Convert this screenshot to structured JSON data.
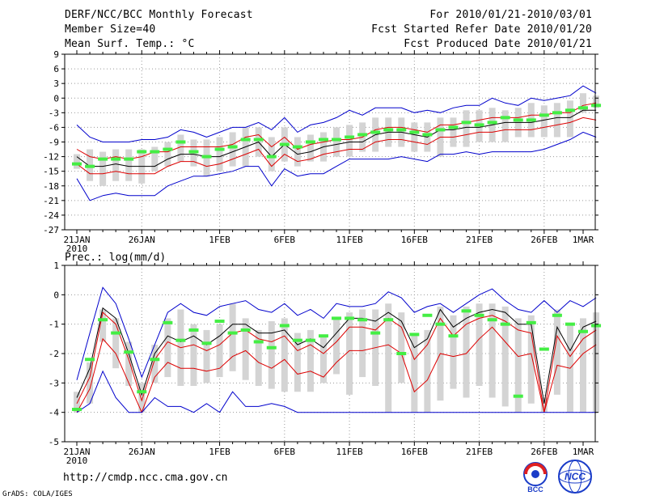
{
  "header": {
    "title": "DERF/NCC/BCC Monthly Forecast",
    "member_size": "Member Size=40",
    "variable1": "Mean Surf. Temp.: °C",
    "period": "For 2010/01/21-2010/03/01",
    "fcst_start": "Fcst Started Refer Date 2010/01/20",
    "fcst_produced": "Fcst Produced Date 2010/01/21"
  },
  "footer": {
    "url": "http://cmdp.ncc.cma.gov.cn",
    "credit": "GrADS: COLA/IGES"
  },
  "logos": {
    "bcc": "BCC",
    "ncc": "NCC"
  },
  "colors": {
    "envelope": "#0000cc",
    "spread": "#dd0000",
    "mean": "#000000",
    "box": "#d4d4d4",
    "observed": "#44ee44",
    "grid": "#999999"
  },
  "chart_data": [
    {
      "type": "line",
      "title": "Mean Surf. Temp.: °C",
      "xlabel": "",
      "ylabel": "",
      "ylim": [
        -27,
        9
      ],
      "yticks": [
        9,
        6,
        3,
        0,
        -3,
        -6,
        -9,
        -12,
        -15,
        -18,
        -21,
        -24,
        -27
      ],
      "xlim": [
        0,
        39
      ],
      "x_tick_labels": [
        {
          "i": 0,
          "label": "21JAN",
          "sub": "2010"
        },
        {
          "i": 5,
          "label": "26JAN"
        },
        {
          "i": 11,
          "label": "1FEB"
        },
        {
          "i": 16,
          "label": "6FEB"
        },
        {
          "i": 21,
          "label": "11FEB"
        },
        {
          "i": 26,
          "label": "16FEB"
        },
        {
          "i": 31,
          "label": "21FEB"
        },
        {
          "i": 36,
          "label": "26FEB"
        },
        {
          "i": 39,
          "label": "1MAR"
        }
      ],
      "series": [
        {
          "name": "max",
          "values": [
            -5.5,
            -8,
            -9,
            -9,
            -9,
            -8.5,
            -8.5,
            -8,
            -6.5,
            -7,
            -8,
            -7,
            -6,
            -6,
            -5,
            -6.5,
            -4,
            -7,
            -5.5,
            -5,
            -4,
            -2.5,
            -3.5,
            -2,
            -2,
            -2,
            -3,
            -2.5,
            -3,
            -2,
            -1.5,
            -1.5,
            0,
            -1,
            -1.5,
            0,
            -0.5,
            0,
            0.5,
            2.5,
            1
          ]
        },
        {
          "name": "upper",
          "values": [
            -10.5,
            -12,
            -12.5,
            -12,
            -12.5,
            -12,
            -11,
            -11,
            -10,
            -10,
            -10,
            -10,
            -9.5,
            -8,
            -7.5,
            -10,
            -8,
            -10.5,
            -9.5,
            -9,
            -8.5,
            -8.5,
            -8,
            -6.5,
            -6,
            -6,
            -6.5,
            -7,
            -5.5,
            -5.5,
            -5,
            -4.5,
            -4,
            -4,
            -4,
            -3.5,
            -3.5,
            -3,
            -3,
            -1.5,
            -1
          ]
        },
        {
          "name": "mean",
          "values": [
            -12,
            -14,
            -14,
            -13.5,
            -14,
            -14,
            -14,
            -12.5,
            -11.5,
            -11.5,
            -12,
            -12,
            -11,
            -10,
            -9,
            -12,
            -9.5,
            -11.5,
            -11,
            -10,
            -9.5,
            -9,
            -9,
            -7.5,
            -7,
            -7,
            -7.5,
            -8,
            -6.5,
            -6.5,
            -6,
            -6,
            -5.5,
            -5,
            -5,
            -5,
            -4.5,
            -4,
            -4,
            -2.5,
            -2.5
          ]
        },
        {
          "name": "lower",
          "values": [
            -13.5,
            -15.5,
            -15.5,
            -15,
            -15.5,
            -15.5,
            -15.5,
            -14,
            -13,
            -13,
            -14,
            -13.5,
            -12.5,
            -11.5,
            -10.5,
            -14,
            -11.5,
            -13,
            -12.5,
            -11.5,
            -11,
            -10.5,
            -10.5,
            -9,
            -8.5,
            -8.5,
            -9,
            -9.5,
            -8,
            -8,
            -7.5,
            -7,
            -7,
            -6.5,
            -6.5,
            -6.5,
            -6,
            -5.5,
            -5,
            -4,
            -4.5
          ]
        },
        {
          "name": "min",
          "values": [
            -16.5,
            -21,
            -20,
            -19.5,
            -20,
            -20,
            -20,
            -18,
            -17,
            -16,
            -16,
            -15.5,
            -15,
            -14,
            -14,
            -18,
            -14.5,
            -16,
            -15.5,
            -15.5,
            -14,
            -12.5,
            -12.5,
            -12.5,
            -12.5,
            -12,
            -12.5,
            -13,
            -11.5,
            -11.5,
            -11,
            -11.5,
            -11,
            -11,
            -11,
            -11,
            -10.5,
            -9.5,
            -8.5,
            -7,
            -8
          ]
        }
      ],
      "box": {
        "low": [
          -14.5,
          -17,
          -18,
          -17,
          -17,
          -17.5,
          -15,
          -14,
          -13,
          -14,
          -16,
          -15,
          -14,
          -14,
          -12,
          -15,
          -13,
          -14,
          -13,
          -13,
          -12,
          -12,
          -11,
          -11,
          -10,
          -10,
          -11,
          -11,
          -12,
          -10,
          -10,
          -9,
          -9,
          -9,
          -8,
          -8,
          -8,
          -8,
          -8,
          -3,
          -2
        ],
        "high": [
          -11.5,
          -10.5,
          -11,
          -10.5,
          -10.5,
          -10.5,
          -10,
          -9,
          -7.5,
          -8.5,
          -8.5,
          -8,
          -7,
          -6,
          -6,
          -8,
          -6,
          -8,
          -7.5,
          -7,
          -6,
          -5.5,
          -5,
          -4,
          -4,
          -4,
          -5,
          -5,
          -4,
          -4,
          -2.5,
          -2.5,
          -2,
          -2.5,
          -2,
          -1,
          -1.5,
          -1,
          -0.5,
          1,
          0.5
        ]
      },
      "observed": [
        -13.5,
        -14,
        -12.5,
        -12.5,
        -12.5,
        -11,
        -11,
        -10.5,
        -9,
        -11,
        -12,
        -10.5,
        -10,
        -8.5,
        -8.5,
        -12,
        -9.5,
        -10,
        -9,
        -8.5,
        -8.5,
        -8,
        -7.5,
        -7,
        -6.5,
        -6.5,
        -7,
        -7.5,
        -6.5,
        -6,
        -5,
        -5.5,
        -5,
        -4,
        -4.5,
        -4.5,
        -3.5,
        -3,
        -2.5,
        -2,
        -1.5
      ]
    },
    {
      "type": "line",
      "title": "Prec.: log(mm/d)",
      "xlabel": "",
      "ylabel": "",
      "ylim": [
        -5,
        1
      ],
      "yticks": [
        1,
        0,
        -1,
        -2,
        -3,
        -4,
        -5
      ],
      "xlim": [
        0,
        39
      ],
      "x_tick_labels": [
        {
          "i": 0,
          "label": "21JAN",
          "sub": "2010"
        },
        {
          "i": 5,
          "label": "26JAN"
        },
        {
          "i": 11,
          "label": "1FEB"
        },
        {
          "i": 16,
          "label": "6FEB"
        },
        {
          "i": 21,
          "label": "11FEB"
        },
        {
          "i": 26,
          "label": "16FEB"
        },
        {
          "i": 31,
          "label": "21FEB"
        },
        {
          "i": 36,
          "label": "26FEB"
        },
        {
          "i": 39,
          "label": "1MAR"
        }
      ],
      "series": [
        {
          "name": "max",
          "values": [
            -2.9,
            -1.3,
            0.25,
            -0.3,
            -1.5,
            -2.8,
            -1.7,
            -0.6,
            -0.3,
            -0.6,
            -0.7,
            -0.4,
            -0.3,
            -0.2,
            -0.5,
            -0.6,
            -0.3,
            -0.7,
            -0.5,
            -0.8,
            -0.3,
            -0.4,
            -0.4,
            -0.3,
            0.1,
            -0.1,
            -0.6,
            -0.4,
            -0.3,
            -0.6,
            -0.3,
            0,
            0.2,
            -0.2,
            -0.5,
            -0.6,
            -0.2,
            -0.6,
            -0.2,
            -0.4,
            -0.1
          ]
        },
        {
          "name": "mean",
          "values": [
            -3.5,
            -2.5,
            -0.45,
            -0.8,
            -2.0,
            -3.4,
            -2.0,
            -1.4,
            -1.6,
            -1.4,
            -1.7,
            -1.4,
            -1.0,
            -1.0,
            -1.3,
            -1.3,
            -1.2,
            -1.7,
            -1.5,
            -1.8,
            -1.3,
            -0.8,
            -0.8,
            -0.9,
            -0.6,
            -0.9,
            -1.8,
            -1.5,
            -0.5,
            -1.1,
            -0.8,
            -0.6,
            -0.5,
            -0.6,
            -1.0,
            -1.0,
            -3.7,
            -1.1,
            -1.9,
            -1.1,
            -0.9
          ]
        },
        {
          "name": "upper",
          "values": [
            -3.7,
            -2.8,
            -0.6,
            -1.0,
            -2.2,
            -3.6,
            -2.2,
            -1.6,
            -1.8,
            -1.7,
            -1.9,
            -1.7,
            -1.3,
            -1.2,
            -1.5,
            -1.6,
            -1.4,
            -1.9,
            -1.7,
            -2.0,
            -1.6,
            -1.1,
            -1.1,
            -1.2,
            -0.8,
            -1.1,
            -2.2,
            -1.7,
            -0.8,
            -1.4,
            -1.0,
            -0.8,
            -0.7,
            -0.9,
            -1.2,
            -1.3,
            -4.0,
            -1.4,
            -2.1,
            -1.5,
            -1.2
          ]
        },
        {
          "name": "lower",
          "values": [
            -4.0,
            -3.2,
            -1.5,
            -2.0,
            -3.0,
            -4.0,
            -2.8,
            -2.3,
            -2.5,
            -2.5,
            -2.6,
            -2.5,
            -2.1,
            -1.9,
            -2.3,
            -2.5,
            -2.2,
            -2.7,
            -2.6,
            -2.8,
            -2.3,
            -1.9,
            -1.9,
            -1.8,
            -1.7,
            -2.0,
            -3.3,
            -2.9,
            -2.0,
            -2.1,
            -2.0,
            -1.5,
            -1.1,
            -1.6,
            -2.1,
            -2.0,
            -4.0,
            -2.4,
            -2.5,
            -2.0,
            -1.7
          ]
        },
        {
          "name": "min",
          "values": [
            -4.0,
            -3.7,
            -2.6,
            -3.5,
            -4.0,
            -4.0,
            -3.5,
            -3.8,
            -3.8,
            -4.0,
            -3.7,
            -4.0,
            -3.3,
            -3.8,
            -3.8,
            -3.7,
            -3.8,
            -4.0,
            -4.0,
            -4.0,
            -4.0,
            -4.0,
            -4.0,
            -4.0,
            -4.0,
            -4.0,
            -4.0,
            -4.0,
            -4.0,
            -4.0,
            -4.0,
            -4.0,
            -4.0,
            -4.0,
            -4.0,
            -4.0,
            -4.0,
            -4.0,
            -4.0,
            -4.0,
            -4.0
          ]
        }
      ],
      "box": {
        "low": [
          -4.0,
          -3.7,
          -1.6,
          -2.5,
          -3.1,
          -4.0,
          -3.0,
          -2.8,
          -3.1,
          -3.1,
          -3.0,
          -2.8,
          -2.6,
          -2.9,
          -3.1,
          -3.2,
          -3.3,
          -3.3,
          -3.3,
          -3.0,
          -2.7,
          -3.4,
          -2.8,
          -3.1,
          -4.0,
          -3.0,
          -4.0,
          -4.0,
          -3.6,
          -3.2,
          -3.5,
          -3.1,
          -3.5,
          -3.8,
          -4.0,
          -3.7,
          -4.0,
          -3.4,
          -4.0,
          -4.0,
          -4.0
        ],
        "high": [
          -3.3,
          -2.3,
          -0.5,
          -0.8,
          -1.6,
          -3.0,
          -1.7,
          -0.8,
          -0.5,
          -1.0,
          -1.2,
          -1.0,
          -0.3,
          -0.8,
          -1.2,
          -0.9,
          -0.8,
          -1.3,
          -1.2,
          -1.4,
          -0.8,
          -0.6,
          -0.5,
          -0.5,
          -0.3,
          -0.6,
          -1.3,
          -1.2,
          -0.4,
          -0.7,
          -0.4,
          -0.3,
          -0.3,
          -0.4,
          -0.8,
          -0.7,
          -3.5,
          -0.5,
          -1.0,
          -0.8,
          -0.6
        ]
      },
      "observed": [
        -3.9,
        -2.2,
        -0.85,
        -1.3,
        -1.95,
        -3.3,
        -2.2,
        -0.95,
        -1.55,
        -1.2,
        -1.65,
        -0.9,
        -1.3,
        -1.2,
        -1.6,
        -1.8,
        -1.05,
        -1.55,
        -1.55,
        -1.4,
        -0.8,
        -0.8,
        -0.85,
        -1.3,
        -0.85,
        -2.0,
        -1.35,
        -0.7,
        -1.0,
        -1.4,
        -0.55,
        -0.7,
        -0.85,
        -1.0,
        -3.45,
        -0.95,
        -1.85,
        -0.7,
        -1.0,
        -1.25,
        -1.05
      ]
    }
  ]
}
